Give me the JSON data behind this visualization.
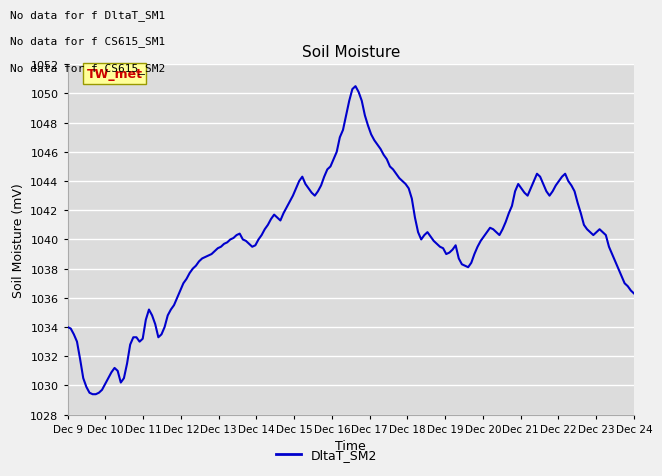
{
  "title": "Soil Moisture",
  "ylabel": "Soil Moisture (mV)",
  "xlabel": "Time",
  "ylim": [
    1028,
    1052
  ],
  "yticks": [
    1028,
    1030,
    1032,
    1034,
    1036,
    1038,
    1040,
    1042,
    1044,
    1046,
    1048,
    1050,
    1052
  ],
  "line_color": "#0000cc",
  "line_width": 1.5,
  "bg_color": "#dcdcdc",
  "grid_color": "#ffffff",
  "fig_bg_color": "#f0f0f0",
  "no_data_texts": [
    "No data for f DltaT_SM1",
    "No data for f CS615_SM1",
    "No data for f CS615_SM2"
  ],
  "legend_label": "DltaT_SM2",
  "tw_met_text": "TW_met",
  "tw_met_color": "#cc0000",
  "tw_met_bg": "#ffff99",
  "tw_met_edge": "#999900",
  "x_tick_labels": [
    "Dec 9",
    "Dec 10",
    "Dec 11",
    "Dec 12",
    "Dec 13",
    "Dec 14",
    "Dec 15",
    "Dec 16",
    "Dec 17",
    "Dec 18",
    "Dec 19",
    "Dec 20",
    "Dec 21",
    "Dec 22",
    "Dec 23",
    "Dec 24"
  ],
  "y_data": [
    1034.0,
    1033.9,
    1033.5,
    1033.0,
    1031.8,
    1030.5,
    1029.9,
    1029.5,
    1029.4,
    1029.4,
    1029.5,
    1029.7,
    1030.1,
    1030.5,
    1030.9,
    1031.2,
    1031.0,
    1030.2,
    1030.5,
    1031.5,
    1032.8,
    1033.3,
    1033.3,
    1033.0,
    1033.2,
    1034.5,
    1035.2,
    1034.8,
    1034.2,
    1033.3,
    1033.5,
    1034.0,
    1034.8,
    1035.2,
    1035.5,
    1036.0,
    1036.5,
    1037.0,
    1037.3,
    1037.7,
    1038.0,
    1038.2,
    1038.5,
    1038.7,
    1038.8,
    1038.9,
    1039.0,
    1039.2,
    1039.4,
    1039.5,
    1039.7,
    1039.8,
    1040.0,
    1040.1,
    1040.3,
    1040.4,
    1040.0,
    1039.9,
    1039.7,
    1039.5,
    1039.6,
    1040.0,
    1040.3,
    1040.7,
    1041.0,
    1041.4,
    1041.7,
    1041.5,
    1041.3,
    1041.8,
    1042.2,
    1042.6,
    1043.0,
    1043.5,
    1044.0,
    1044.3,
    1043.8,
    1043.5,
    1043.2,
    1043.0,
    1043.3,
    1043.7,
    1044.3,
    1044.8,
    1045.0,
    1045.5,
    1046.0,
    1047.0,
    1047.5,
    1048.5,
    1049.5,
    1050.3,
    1050.5,
    1050.1,
    1049.5,
    1048.5,
    1047.8,
    1047.2,
    1046.8,
    1046.5,
    1046.2,
    1045.8,
    1045.5,
    1045.0,
    1044.8,
    1044.5,
    1044.2,
    1044.0,
    1043.8,
    1043.5,
    1042.8,
    1041.5,
    1040.5,
    1040.0,
    1040.3,
    1040.5,
    1040.2,
    1039.9,
    1039.7,
    1039.5,
    1039.4,
    1039.0,
    1039.1,
    1039.3,
    1039.6,
    1038.7,
    1038.3,
    1038.2,
    1038.1,
    1038.4,
    1039.0,
    1039.5,
    1039.9,
    1040.2,
    1040.5,
    1040.8,
    1040.7,
    1040.5,
    1040.3,
    1040.7,
    1041.2,
    1041.8,
    1042.3,
    1043.3,
    1043.8,
    1043.5,
    1043.2,
    1043.0,
    1043.5,
    1044.0,
    1044.5,
    1044.3,
    1043.8,
    1043.3,
    1043.0,
    1043.3,
    1043.7,
    1044.0,
    1044.3,
    1044.5,
    1044.0,
    1043.7,
    1043.3,
    1042.5,
    1041.8,
    1041.0,
    1040.7,
    1040.5,
    1040.3,
    1040.5,
    1040.7,
    1040.5,
    1040.3,
    1039.5,
    1039.0,
    1038.5,
    1038.0,
    1037.5,
    1037.0,
    1036.8,
    1036.5,
    1036.3
  ]
}
